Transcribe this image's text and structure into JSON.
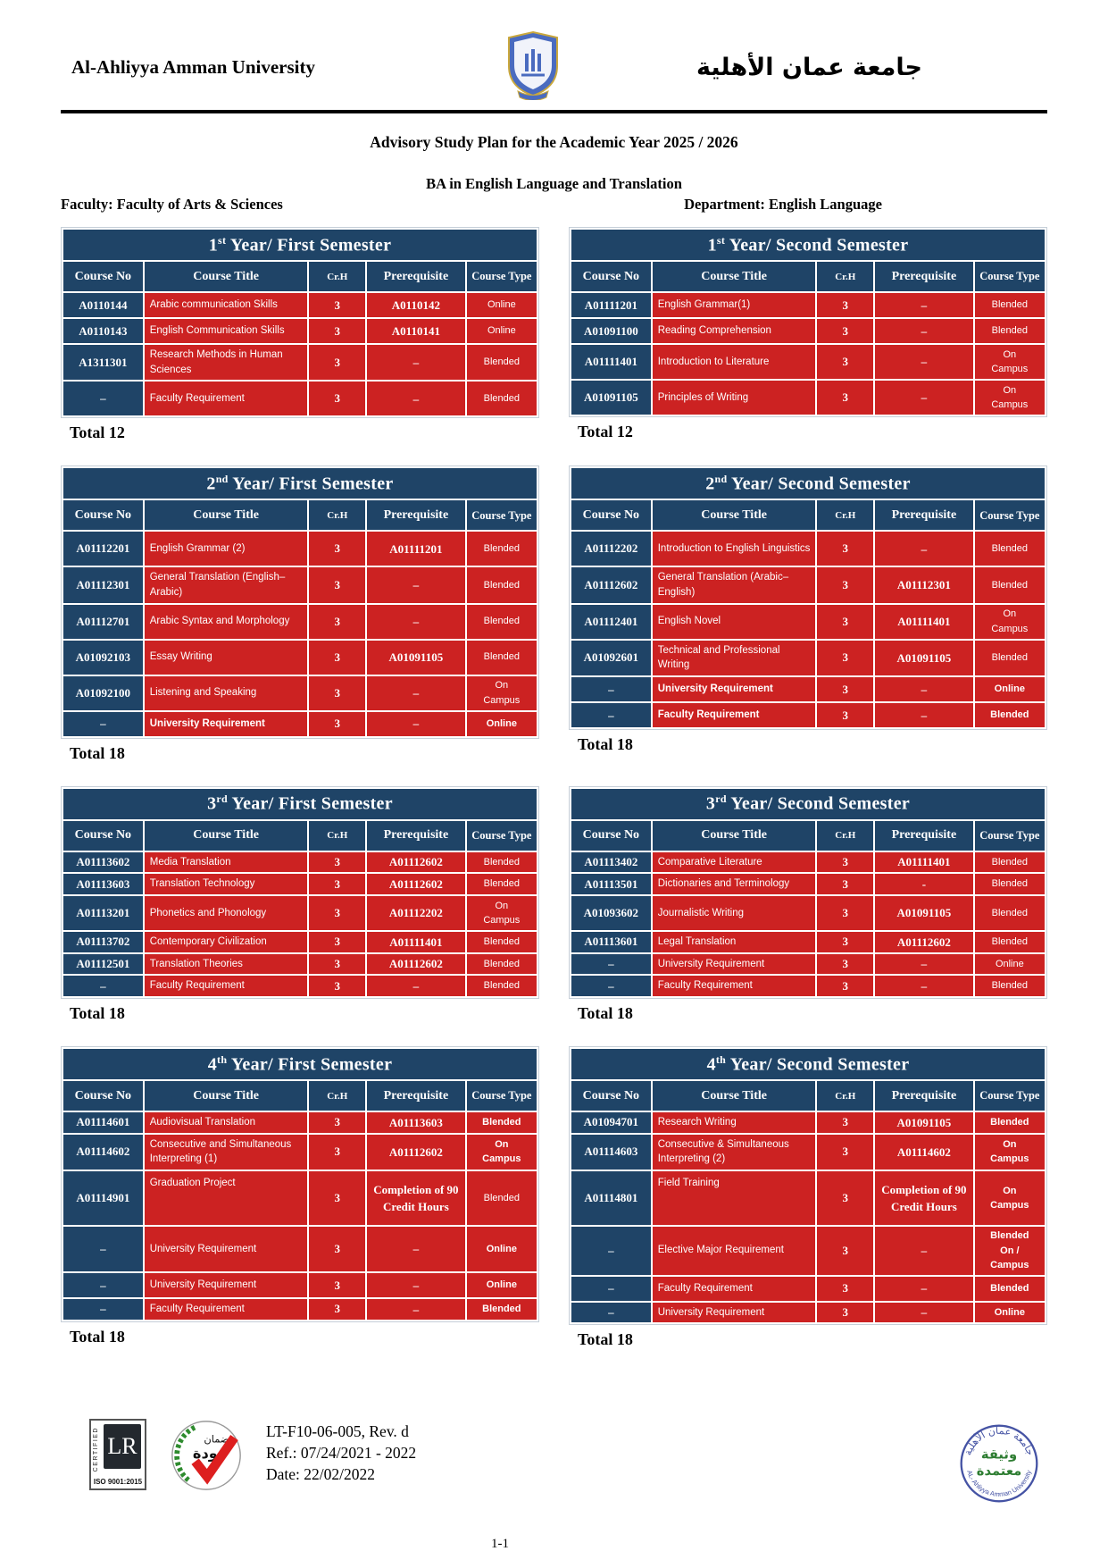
{
  "colors": {
    "navy": "#1F4467",
    "red": "#CC2222"
  },
  "header": {
    "university_en": "Al-Ahliyya Amman University",
    "university_ar": "جامعة عمان الأهلية",
    "title": "Advisory Study Plan for the Academic Year 2025 / 2026",
    "program": "BA in English Language and Translation",
    "faculty": "Faculty: Faculty of Arts & Sciences",
    "department": "Department: English Language"
  },
  "columns": [
    "Course No",
    "Course Title",
    "Cr.H",
    "Prerequisite",
    "Course Type"
  ],
  "tables": [
    {
      "num": "1",
      "sup": "st",
      "rest": " Year/ First Semester",
      "total": "Total 12",
      "rows": [
        {
          "no": "A0110144",
          "title": "Arabic communication Skills",
          "cr": "3",
          "prereq": "A0110142",
          "type": "Online",
          "h": "n"
        },
        {
          "no": "A0110143",
          "title": "English Communication Skills",
          "cr": "3",
          "prereq": "A0110141",
          "type": "Online",
          "h": "n"
        },
        {
          "no": "A1311301",
          "title": "Research Methods in Human Sciences",
          "cr": "3",
          "prereq": "–",
          "type": "Blended",
          "h": "m"
        },
        {
          "no": "–",
          "title": "Faculty Requirement",
          "cr": "3",
          "prereq": "–",
          "type": "Blended",
          "h": "m"
        }
      ]
    },
    {
      "num": "1",
      "sup": "st",
      "rest": " Year/ Second Semester",
      "total": "Total 12",
      "rows": [
        {
          "no": "A01111201",
          "title": "English Grammar(1)",
          "cr": "3",
          "prereq": "–",
          "type": "Blended",
          "h": "n"
        },
        {
          "no": "A01091100",
          "title": "Reading Comprehension",
          "cr": "3",
          "prereq": "–",
          "type": "Blended",
          "h": "n"
        },
        {
          "no": "A01111401",
          "title": "Introduction to Literature",
          "cr": "3",
          "prereq": "–",
          "type": "On\nCampus",
          "h": "m"
        },
        {
          "no": "A01091105",
          "title": "Principles of Writing",
          "cr": "3",
          "prereq": "–",
          "type": "On\nCampus",
          "h": "m"
        }
      ]
    },
    {
      "num": "2",
      "sup": "nd",
      "rest": " Year/ First Semester",
      "total": "Total 18",
      "rows": [
        {
          "no": "A01112201",
          "title": "English Grammar (2)",
          "cr": "3",
          "prereq": "A01111201",
          "type": "Blended",
          "h": "m"
        },
        {
          "no": "A01112301",
          "title": "General Translation (English–Arabic)",
          "cr": "3",
          "prereq": "–",
          "type": "Blended",
          "h": "m"
        },
        {
          "no": "A01112701",
          "title": "Arabic Syntax and Morphology",
          "cr": "3",
          "prereq": "–",
          "type": "Blended",
          "h": "m"
        },
        {
          "no": "A01092103",
          "title": "Essay Writing",
          "cr": "3",
          "prereq": "A01091105",
          "type": "Blended",
          "h": "m"
        },
        {
          "no": "A01092100",
          "title": "Listening and Speaking",
          "cr": "3",
          "prereq": "–",
          "type": "On\nCampus",
          "h": "m"
        },
        {
          "no": "–",
          "title": "University Requirement",
          "cr": "3",
          "prereq": "–",
          "type": "Online",
          "h": "n",
          "bold_title": true,
          "bold_type": true
        }
      ]
    },
    {
      "num": "2",
      "sup": "nd",
      "rest": " Year/ Second Semester",
      "total": "Total 18",
      "rows": [
        {
          "no": "A01112202",
          "title": "Introduction to English Linguistics",
          "cr": "3",
          "prereq": "–",
          "type": "Blended",
          "h": "m"
        },
        {
          "no": "A01112602",
          "title": "General Translation (Arabic–English)",
          "cr": "3",
          "prereq": "A01112301",
          "type": "Blended",
          "h": "m"
        },
        {
          "no": "A01112401",
          "title": "English Novel",
          "cr": "3",
          "prereq": "A01111401",
          "type": "On\nCampus",
          "h": "m"
        },
        {
          "no": "A01092601",
          "title": "Technical and Professional Writing",
          "cr": "3",
          "prereq": "A01091105",
          "type": "Blended",
          "h": "m"
        },
        {
          "no": "–",
          "title": "University Requirement",
          "cr": "3",
          "prereq": "–",
          "type": "Online",
          "h": "n",
          "bold_title": true,
          "bold_type": true
        },
        {
          "no": "–",
          "title": "Faculty Requirement",
          "cr": "3",
          "prereq": "–",
          "type": "Blended",
          "h": "n",
          "bold_title": true,
          "bold_type": true
        }
      ]
    },
    {
      "num": "3",
      "sup": "rd",
      "rest": " Year/ First Semester",
      "total": "Total 18",
      "rows": [
        {
          "no": "A01113602",
          "title": "Media Translation",
          "cr": "3",
          "prereq": "A01112602",
          "type": "Blended",
          "h": "s"
        },
        {
          "no": "A01113603",
          "title": "Translation Technology",
          "cr": "3",
          "prereq": "A01112602",
          "type": "Blended",
          "h": "s"
        },
        {
          "no": "A01113201",
          "title": "Phonetics and Phonology",
          "cr": "3",
          "prereq": "A01112202",
          "type": "On\nCampus",
          "h": "m"
        },
        {
          "no": "A01113702",
          "title": "Contemporary Civilization",
          "cr": "3",
          "prereq": "A01111401",
          "type": "Blended",
          "h": "s"
        },
        {
          "no": "A01112501",
          "title": "Translation Theories",
          "cr": "3",
          "prereq": "A01112602",
          "type": "Blended",
          "h": "s"
        },
        {
          "no": "–",
          "title": "Faculty Requirement",
          "cr": "3",
          "prereq": "–",
          "type": "Blended",
          "h": "s"
        }
      ]
    },
    {
      "num": "3",
      "sup": "rd",
      "rest": " Year/ Second Semester",
      "total": "Total 18",
      "rows": [
        {
          "no": "A01113402",
          "title": "Comparative Literature",
          "cr": "3",
          "prereq": "A01111401",
          "type": "Blended",
          "h": "s"
        },
        {
          "no": "A01113501",
          "title": "Dictionaries and Terminology",
          "cr": "3",
          "prereq": "-",
          "type": "Blended",
          "h": "s"
        },
        {
          "no": "A01093602",
          "title": "Journalistic Writing",
          "cr": "3",
          "prereq": "A01091105",
          "type": "Blended",
          "h": "m"
        },
        {
          "no": "A01113601",
          "title": "Legal Translation",
          "cr": "3",
          "prereq": "A01112602",
          "type": "Blended",
          "h": "s"
        },
        {
          "no": "–",
          "title": "University Requirement",
          "cr": "3",
          "prereq": "–",
          "type": "Online",
          "h": "s"
        },
        {
          "no": "–",
          "title": "Faculty Requirement",
          "cr": "3",
          "prereq": "–",
          "type": "Blended",
          "h": "s"
        }
      ]
    },
    {
      "num": "4",
      "sup": "th",
      "rest": " Year/ First Semester",
      "total": "Total 18",
      "rows": [
        {
          "no": "A01114601",
          "title": "Audiovisual Translation",
          "cr": "3",
          "prereq": "A01113603",
          "type": "Blended",
          "h": "s",
          "bold_type": true
        },
        {
          "no": "A01114602",
          "title": "Consecutive and Simultaneous Interpreting (1)",
          "cr": "3",
          "prereq": "A01112602",
          "type": "On\nCampus",
          "h": "m",
          "bold_type": true
        },
        {
          "no": "A01114901",
          "title": "Graduation Project",
          "cr": "3",
          "prereq": "Completion of 90 Credit Hours",
          "type": "Blended",
          "h": "x"
        },
        {
          "no": "–",
          "title": "University Requirement",
          "cr": "3",
          "prereq": "–",
          "type": "Online",
          "h": "t",
          "bold_type": true
        },
        {
          "no": "–",
          "title": "University Requirement",
          "cr": "3",
          "prereq": "–",
          "type": "Online",
          "h": "n",
          "bold_type": true
        },
        {
          "no": "–",
          "title": "Faculty Requirement",
          "cr": "3",
          "prereq": "–",
          "type": "Blended",
          "h": "s",
          "bold_type": true
        }
      ]
    },
    {
      "num": "4",
      "sup": "th",
      "rest": " Year/ Second Semester",
      "total": "Total 18",
      "rows": [
        {
          "no": "A01094701",
          "title": "Research Writing",
          "cr": "3",
          "prereq": "A01091105",
          "type": "Blended",
          "h": "s",
          "bold_type": true
        },
        {
          "no": "A01114603",
          "title": "Consecutive & Simultaneous Interpreting (2)",
          "cr": "3",
          "prereq": "A01114602",
          "type": "On\nCampus",
          "h": "m",
          "bold_type": true
        },
        {
          "no": "A01114801",
          "title": "Field Training",
          "cr": "3",
          "prereq": "Completion of 90 Credit Hours",
          "type": "On\nCampus",
          "h": "x",
          "bold_type": true
        },
        {
          "no": "–",
          "title": "Elective Major Requirement",
          "cr": "3",
          "prereq": "–",
          "type": "Blended\nOn /\nCampus",
          "h": "t",
          "bold_type": true
        },
        {
          "no": "–",
          "title": "Faculty Requirement",
          "cr": "3",
          "prereq": "–",
          "type": "Blended",
          "h": "n",
          "bold_type": true
        },
        {
          "no": "–",
          "title": "University Requirement",
          "cr": "3",
          "prereq": "–",
          "type": "Online",
          "h": "s",
          "bold_type": true
        }
      ]
    }
  ],
  "footer": {
    "doc_code": "LT-F10-06-005, Rev. d",
    "ref": "Ref.: 07/24/2021 - 2022",
    "date": "Date: 22/02/2022",
    "page": "1-1",
    "lr_certified": "CERTIFIED",
    "lr_mark": "LR",
    "lr_iso": "ISO 9001:2015",
    "quality_ar_1": "ضمان",
    "quality_ar_2": "جودة",
    "stamp_top_ar": "جامعة عمان الأهلية",
    "stamp_center_1": "وثيقة",
    "stamp_center_2": "معتمدة",
    "stamp_bottom": "AL- Ahliyya Amman University"
  }
}
